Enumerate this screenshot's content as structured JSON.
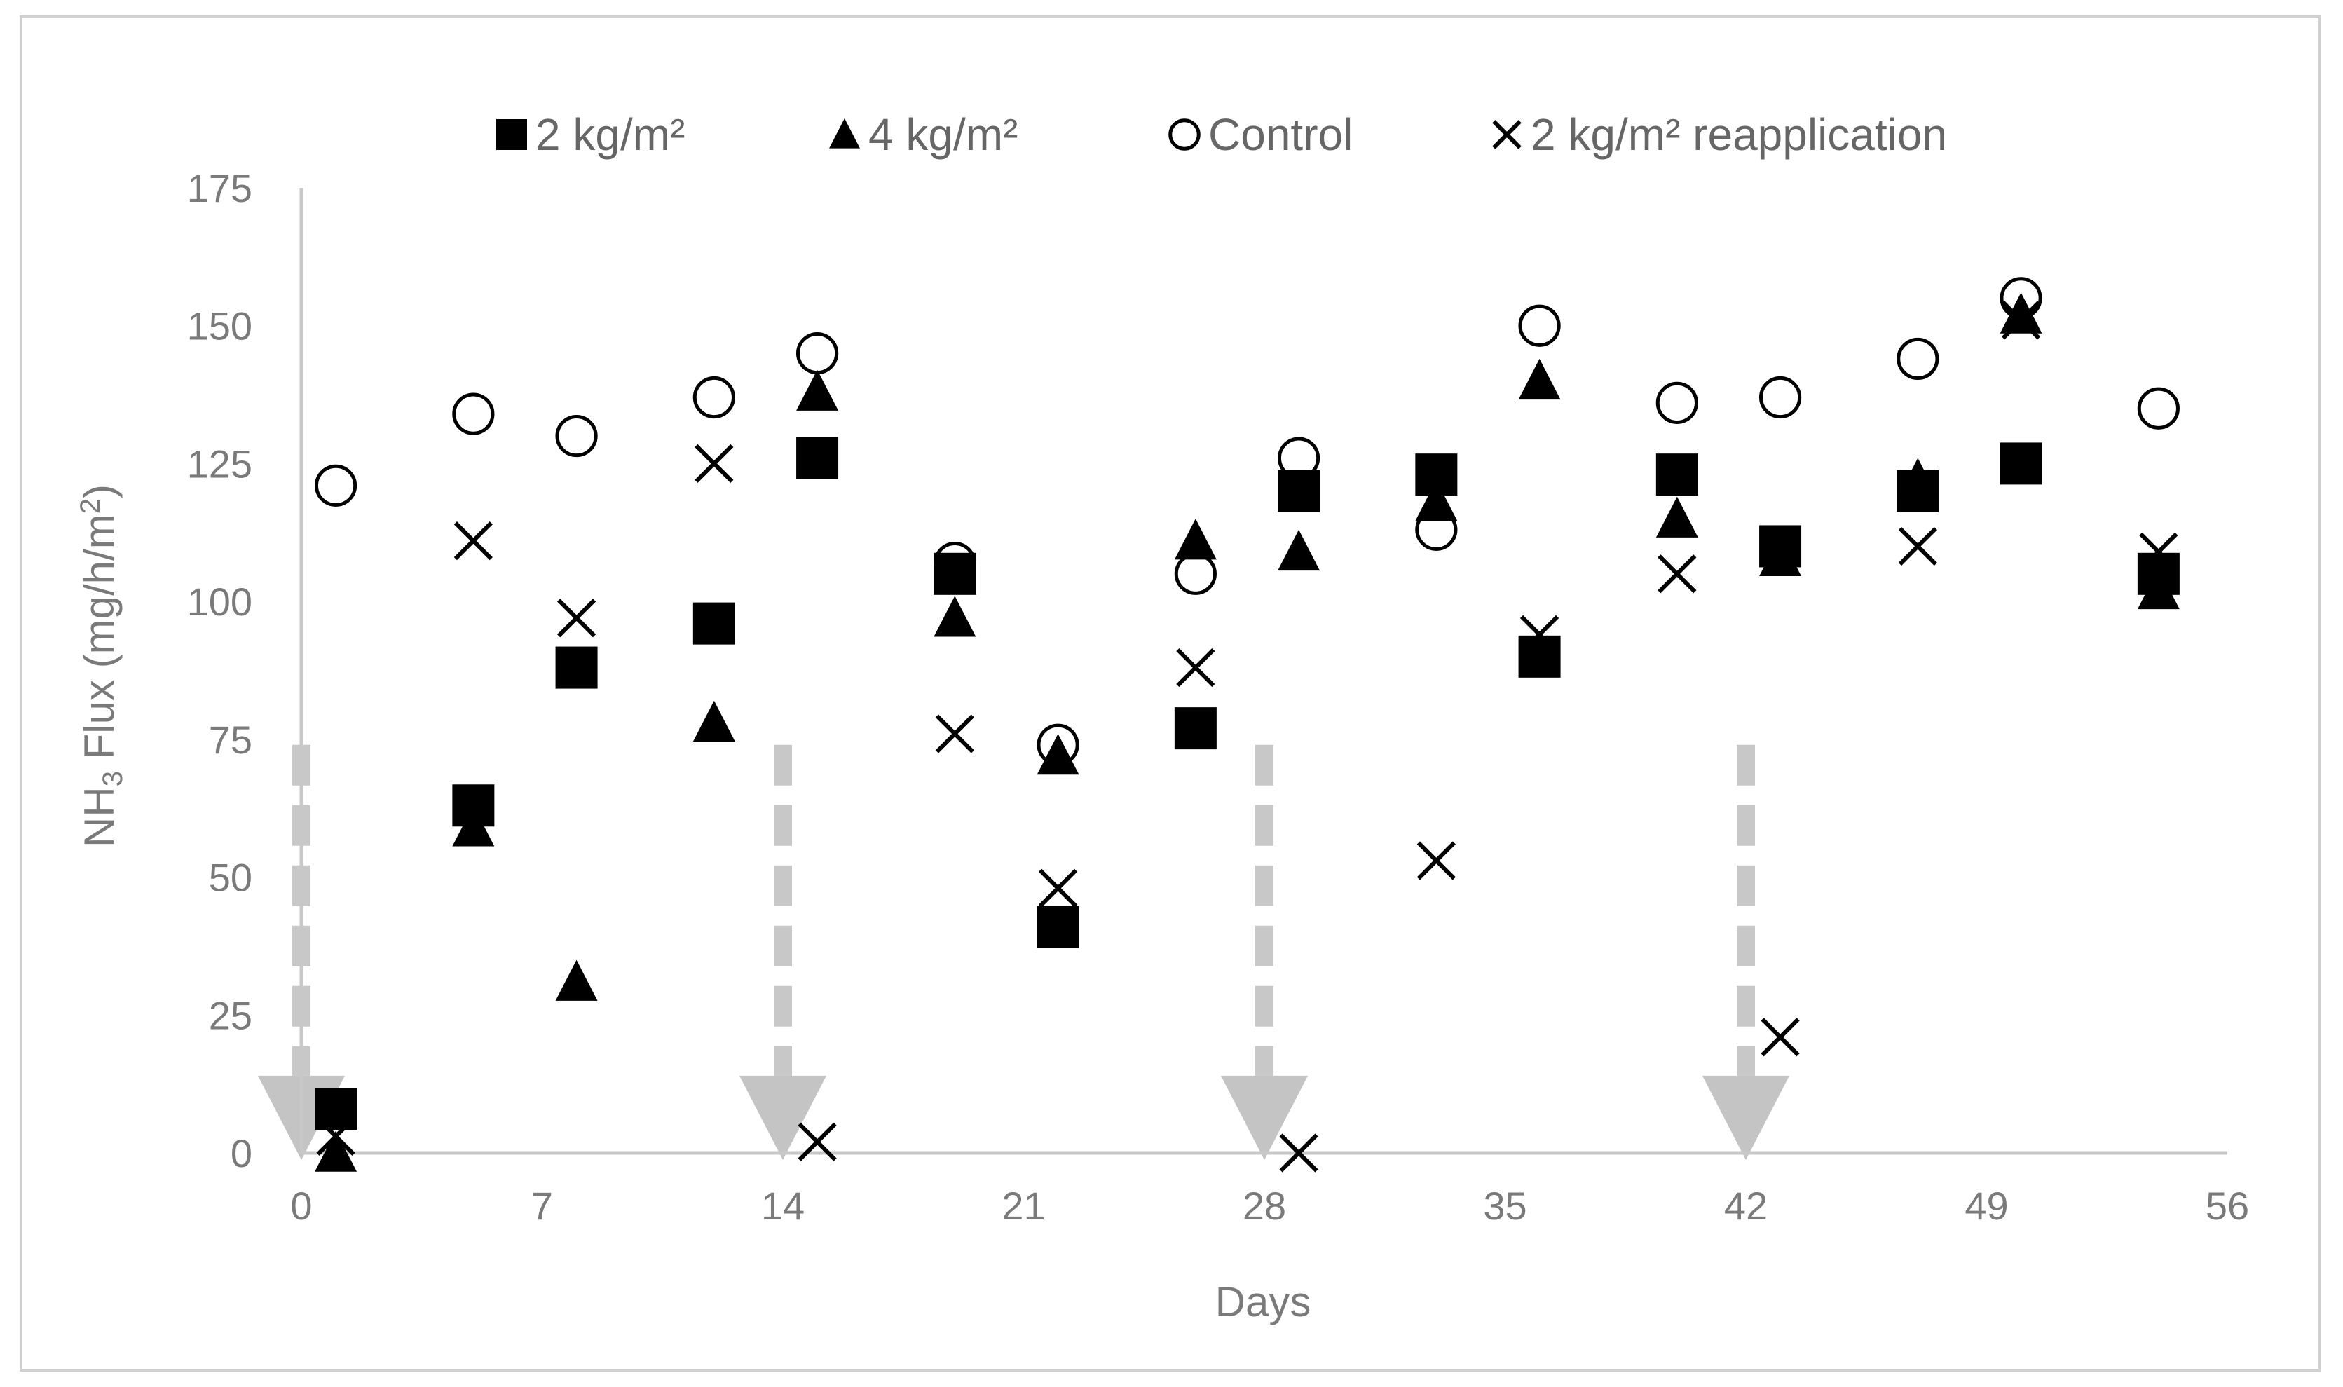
{
  "chart_data": {
    "type": "scatter",
    "title": "",
    "xlabel": "Days",
    "ylabel_main": "NH",
    "ylabel_sub": "3",
    "ylabel_rest": " Flux (mg/h/m",
    "ylabel_sup": "2",
    "ylabel_end": ")",
    "xlim": [
      0,
      56
    ],
    "ylim": [
      0,
      175
    ],
    "x_ticks": [
      0,
      7,
      14,
      21,
      28,
      35,
      42,
      49,
      56
    ],
    "y_ticks": [
      0,
      25,
      50,
      75,
      100,
      125,
      150,
      175
    ],
    "legend_position": "top",
    "application_days": [
      0,
      14,
      28,
      42
    ],
    "series": [
      {
        "name": "2 kg/m²",
        "marker": "square",
        "x": [
          1,
          5,
          8,
          12,
          15,
          19,
          22,
          26,
          29,
          33,
          36,
          40,
          43,
          47,
          50,
          54
        ],
        "y": [
          8,
          63,
          88,
          96,
          126,
          105,
          41,
          77,
          120,
          123,
          90,
          123,
          110,
          120,
          125,
          105
        ]
      },
      {
        "name": "4 kg/m²",
        "marker": "triangle",
        "x": [
          1,
          5,
          8,
          12,
          15,
          19,
          22,
          26,
          29,
          33,
          36,
          40,
          43,
          47,
          50,
          54
        ],
        "y": [
          0,
          59,
          31,
          78,
          138,
          97,
          72,
          111,
          109,
          118,
          140,
          115,
          108,
          122,
          152,
          102
        ]
      },
      {
        "name": "Control",
        "marker": "circle",
        "x": [
          1,
          5,
          8,
          12,
          15,
          19,
          22,
          26,
          29,
          33,
          36,
          40,
          43,
          47,
          50,
          54
        ],
        "y": [
          121,
          134,
          130,
          137,
          145,
          107,
          74,
          105,
          126,
          113,
          150,
          136,
          137,
          144,
          155,
          135
        ]
      },
      {
        "name": "2 kg/m² reapplication",
        "marker": "x",
        "x": [
          1,
          5,
          8,
          12,
          15,
          19,
          22,
          26,
          29,
          33,
          36,
          40,
          43,
          47,
          50,
          54
        ],
        "y": [
          3,
          111,
          97,
          125,
          2,
          76,
          48,
          88,
          0,
          53,
          94,
          105,
          21,
          110,
          151,
          109
        ]
      }
    ]
  }
}
